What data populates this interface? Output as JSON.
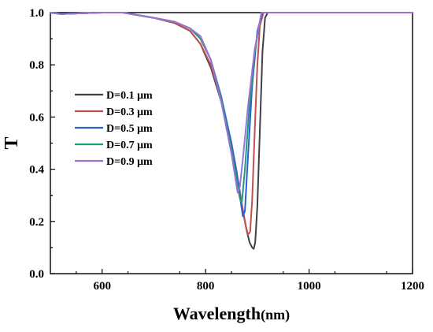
{
  "chart_data": {
    "type": "line",
    "xlabel": "Wavelength",
    "xlabel_unit": "(nm)",
    "ylabel": "T",
    "xlim": [
      500,
      1200
    ],
    "ylim": [
      0.0,
      1.0
    ],
    "xticks": [
      600,
      800,
      1000,
      1200
    ],
    "yticks": [
      0.0,
      0.2,
      0.4,
      0.6,
      0.8,
      1.0
    ],
    "xtick_labels": [
      "600",
      "800",
      "1000",
      "1200"
    ],
    "ytick_labels": [
      "0.0",
      "0.2",
      "0.4",
      "0.6",
      "0.8",
      "1.0"
    ],
    "legend_position": "center-left",
    "series": [
      {
        "name": "D=0.1 μm",
        "color": "#404040",
        "x": [
          500,
          520,
          600,
          640,
          700,
          740,
          770,
          790,
          810,
          830,
          850,
          860,
          870,
          880,
          885,
          890,
          893,
          896,
          900,
          905,
          910,
          915,
          920,
          1200
        ],
        "y": [
          1.0,
          0.995,
          1.0,
          1.0,
          0.98,
          0.96,
          0.93,
          0.88,
          0.79,
          0.66,
          0.49,
          0.38,
          0.26,
          0.16,
          0.12,
          0.1,
          0.095,
          0.12,
          0.26,
          0.55,
          0.85,
          0.98,
          1.0,
          1.0
        ]
      },
      {
        "name": "D=0.3 μm",
        "color": "#c0504d",
        "x": [
          500,
          520,
          600,
          640,
          700,
          740,
          770,
          790,
          810,
          830,
          850,
          860,
          870,
          878,
          882,
          886,
          890,
          895,
          900,
          905,
          912,
          1200
        ],
        "y": [
          1.0,
          0.995,
          1.0,
          1.0,
          0.98,
          0.96,
          0.93,
          0.88,
          0.8,
          0.67,
          0.5,
          0.39,
          0.27,
          0.18,
          0.15,
          0.16,
          0.28,
          0.55,
          0.8,
          0.95,
          1.0,
          1.0
        ]
      },
      {
        "name": "D=0.5 μm",
        "color": "#2f5fcf",
        "x": [
          500,
          520,
          600,
          640,
          700,
          740,
          770,
          790,
          810,
          830,
          850,
          860,
          866,
          872,
          876,
          882,
          890,
          900,
          910,
          1200
        ],
        "y": [
          1.0,
          0.995,
          1.0,
          1.0,
          0.98,
          0.965,
          0.94,
          0.9,
          0.82,
          0.68,
          0.5,
          0.39,
          0.3,
          0.22,
          0.24,
          0.45,
          0.72,
          0.93,
          1.0,
          1.0
        ]
      },
      {
        "name": "D=0.7 μm",
        "color": "#1f9a7d",
        "x": [
          500,
          520,
          600,
          640,
          700,
          740,
          770,
          790,
          810,
          830,
          850,
          860,
          866,
          870,
          876,
          884,
          895,
          908,
          1200
        ],
        "y": [
          1.0,
          0.995,
          1.0,
          1.0,
          0.98,
          0.965,
          0.94,
          0.9,
          0.82,
          0.67,
          0.48,
          0.36,
          0.29,
          0.27,
          0.4,
          0.62,
          0.85,
          1.0,
          1.0
        ]
      },
      {
        "name": "D=0.9 μm",
        "color": "#9a72d6",
        "x": [
          500,
          520,
          600,
          640,
          700,
          740,
          770,
          790,
          810,
          830,
          850,
          858,
          862,
          866,
          872,
          882,
          895,
          908,
          1200
        ],
        "y": [
          1.0,
          0.995,
          1.0,
          1.0,
          0.98,
          0.965,
          0.94,
          0.91,
          0.82,
          0.66,
          0.46,
          0.36,
          0.31,
          0.33,
          0.44,
          0.64,
          0.86,
          1.0,
          1.0
        ]
      }
    ]
  }
}
